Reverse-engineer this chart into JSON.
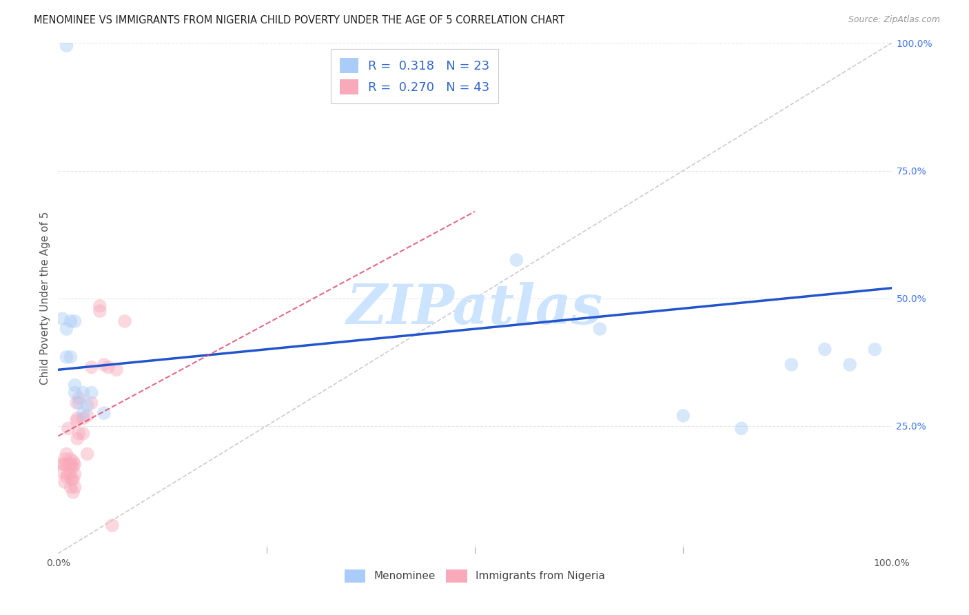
{
  "title": "MENOMINEE VS IMMIGRANTS FROM NIGERIA CHILD POVERTY UNDER THE AGE OF 5 CORRELATION CHART",
  "source": "Source: ZipAtlas.com",
  "ylabel": "Child Poverty Under the Age of 5",
  "xlim": [
    0,
    1
  ],
  "ylim": [
    0,
    1
  ],
  "menominee_color": "#aaccf8",
  "nigeria_color": "#f8aabb",
  "trendline_blue_color": "#2255cc",
  "trendline_pink_color": "#dd4466",
  "diagonal_color": "#cccccc",
  "R_menominee": 0.318,
  "N_menominee": 23,
  "R_nigeria": 0.27,
  "N_nigeria": 43,
  "menominee_x": [
    0.01,
    0.005,
    0.01,
    0.015,
    0.02,
    0.01,
    0.015,
    0.02,
    0.03,
    0.04,
    0.03,
    0.055,
    0.02,
    0.025,
    0.035,
    0.55,
    0.65,
    0.75,
    0.82,
    0.88,
    0.92,
    0.95,
    0.98
  ],
  "menominee_y": [
    0.995,
    0.46,
    0.44,
    0.455,
    0.455,
    0.385,
    0.385,
    0.33,
    0.315,
    0.315,
    0.275,
    0.275,
    0.315,
    0.295,
    0.29,
    0.575,
    0.44,
    0.27,
    0.245,
    0.37,
    0.4,
    0.37,
    0.4
  ],
  "nigeria_x": [
    0.005,
    0.005,
    0.007,
    0.008,
    0.008,
    0.01,
    0.01,
    0.01,
    0.012,
    0.012,
    0.013,
    0.015,
    0.015,
    0.015,
    0.015,
    0.016,
    0.016,
    0.018,
    0.018,
    0.018,
    0.018,
    0.02,
    0.02,
    0.02,
    0.022,
    0.022,
    0.023,
    0.023,
    0.025,
    0.025,
    0.03,
    0.03,
    0.035,
    0.035,
    0.04,
    0.04,
    0.05,
    0.05,
    0.055,
    0.06,
    0.065,
    0.07,
    0.08
  ],
  "nigeria_y": [
    0.175,
    0.16,
    0.175,
    0.185,
    0.14,
    0.195,
    0.175,
    0.15,
    0.245,
    0.155,
    0.175,
    0.185,
    0.17,
    0.155,
    0.13,
    0.175,
    0.145,
    0.18,
    0.17,
    0.145,
    0.12,
    0.175,
    0.155,
    0.13,
    0.295,
    0.26,
    0.265,
    0.225,
    0.305,
    0.235,
    0.265,
    0.235,
    0.27,
    0.195,
    0.365,
    0.295,
    0.485,
    0.475,
    0.37,
    0.365,
    0.055,
    0.36,
    0.455
  ],
  "watermark_text": "ZIPatlas",
  "watermark_color": "#cce4ff",
  "legend_text_color": "#3366cc",
  "grid_color": "#e5e5e5",
  "background": "#ffffff",
  "marker_size": 200,
  "marker_alpha": 0.45
}
